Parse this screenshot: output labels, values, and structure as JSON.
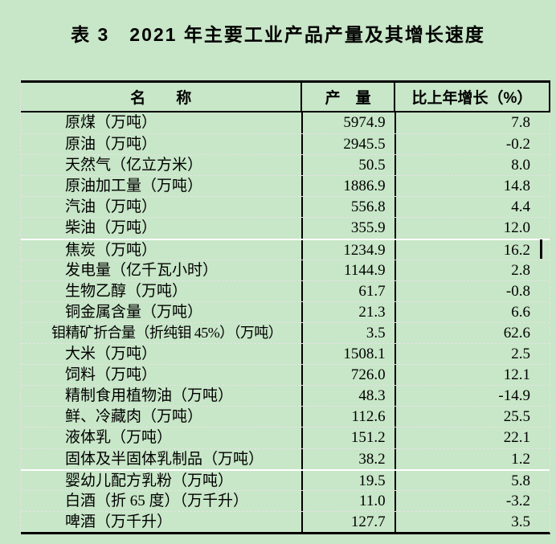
{
  "title": "表 3　2021 年主要工业产品产量及其增长速度",
  "table": {
    "headers": {
      "name": "名　　称",
      "output": "产　量",
      "growth": "比上年增长（%）"
    },
    "rows": [
      {
        "name": "原煤（万吨）",
        "output": "5974.9",
        "growth": "7.8"
      },
      {
        "name": "原油（万吨）",
        "output": "2945.5",
        "growth": "-0.2"
      },
      {
        "name": "天然气（亿立方米）",
        "output": "50.5",
        "growth": "8.0"
      },
      {
        "name": "原油加工量（万吨）",
        "output": "1886.9",
        "growth": "14.8"
      },
      {
        "name": "汽油（万吨）",
        "output": "556.8",
        "growth": "4.4"
      },
      {
        "name": "柴油（万吨）",
        "output": "355.9",
        "growth": "12.0"
      },
      {
        "name": "焦炭（万吨）",
        "output": "1234.9",
        "growth": "16.2"
      },
      {
        "name": "发电量（亿千瓦小时）",
        "output": "1144.9",
        "growth": "2.8"
      },
      {
        "name": "生物乙醇（万吨）",
        "output": "61.7",
        "growth": "-0.8"
      },
      {
        "name": "铜金属含量（万吨）",
        "output": "21.3",
        "growth": "6.6"
      },
      {
        "name": "钼精矿折合量（折纯钼 45%）（万吨）",
        "output": "3.5",
        "growth": "62.6"
      },
      {
        "name": "大米（万吨）",
        "output": "1508.1",
        "growth": "2.5"
      },
      {
        "name": "饲料（万吨）",
        "output": "726.0",
        "growth": "12.1"
      },
      {
        "name": "精制食用植物油（万吨）",
        "output": "48.3",
        "growth": "-14.9"
      },
      {
        "name": "鲜、冷藏肉（万吨）",
        "output": "112.6",
        "growth": "25.5"
      },
      {
        "name": "液体乳（万吨）",
        "output": "151.2",
        "growth": "22.1"
      },
      {
        "name": "固体及半固体乳制品（万吨）",
        "output": "38.2",
        "growth": "1.2"
      },
      {
        "name": "婴幼儿配方乳粉（万吨）",
        "output": "19.5",
        "growth": "5.8"
      },
      {
        "name": "白酒（折 65 度）（万千升）",
        "output": "11.0",
        "growth": "-3.2"
      },
      {
        "name": "啤酒（万千升）",
        "output": "127.7",
        "growth": "3.5"
      }
    ]
  },
  "colors": {
    "page_background": "#c8e6c8",
    "table_border": "#000000",
    "row_gridline": "#e3e3e3",
    "page_break_line": "#ffffff",
    "text": "#000000",
    "caret": "#000000"
  }
}
